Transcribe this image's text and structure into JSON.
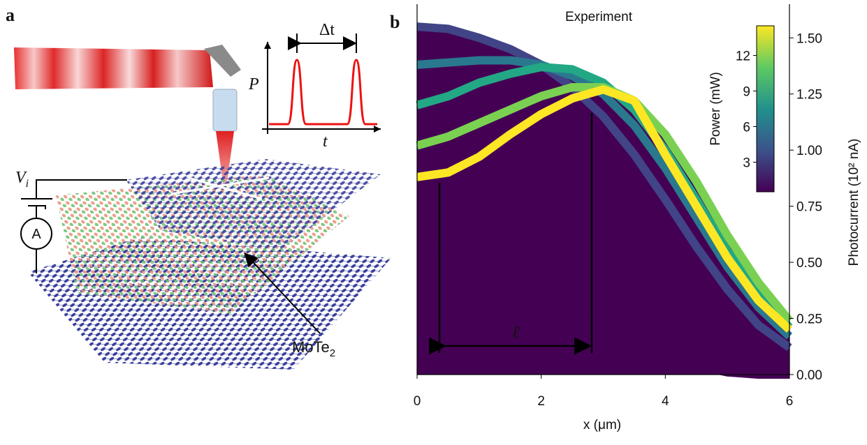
{
  "panel_a": {
    "label": "a",
    "delta_t": "Δt",
    "power_axis": "P",
    "time_axis": "t",
    "voltage": {
      "symbol": "V",
      "subscript": "i"
    },
    "ammeter": "A",
    "material": {
      "formula": "MoTe",
      "subscript": "2"
    }
  },
  "chart_data": {
    "type": "line",
    "panel_label": "b",
    "title": "Experiment",
    "annotation": "ℓ",
    "xlabel": "x (μm)",
    "ylabel": "Photocurrent (10² nA)",
    "x": [
      0,
      0.5,
      1,
      1.5,
      2,
      2.5,
      3,
      3.5,
      4,
      4.5,
      5,
      5.5,
      6
    ],
    "xlim": [
      0,
      6
    ],
    "xticks": [
      0,
      2,
      4,
      6
    ],
    "ylim": [
      0,
      1.65
    ],
    "yticks": [
      {
        "value": 0,
        "label": "0.00"
      },
      {
        "value": 0.25,
        "label": "0.25"
      },
      {
        "value": 0.5,
        "label": "0.50"
      },
      {
        "value": 0.75,
        "label": "0.75"
      },
      {
        "value": 1,
        "label": "1.00"
      },
      {
        "value": 1.25,
        "label": "1.25"
      },
      {
        "value": 1.5,
        "label": "1.50"
      }
    ],
    "series": [
      {
        "color": "#440154",
        "values": [
          0.56,
          0.55,
          0.52,
          0.46,
          0.39,
          0.31,
          0.23,
          0.15,
          0.09,
          0.04,
          0.01,
          0,
          0
        ]
      },
      {
        "color": "#414487",
        "values": [
          1.55,
          1.54,
          1.5,
          1.45,
          1.38,
          1.28,
          1.15,
          0.98,
          0.78,
          0.57,
          0.38,
          0.22,
          0.12
        ]
      },
      {
        "color": "#2a788e",
        "values": [
          1.38,
          1.39,
          1.4,
          1.4,
          1.38,
          1.33,
          1.25,
          1.11,
          0.92,
          0.7,
          0.48,
          0.3,
          0.17
        ]
      },
      {
        "color": "#22a884",
        "values": [
          1.2,
          1.24,
          1.3,
          1.34,
          1.37,
          1.36,
          1.3,
          1.18,
          1.0,
          0.78,
          0.55,
          0.36,
          0.21
        ]
      },
      {
        "color": "#7ad151",
        "values": [
          1.02,
          1.06,
          1.12,
          1.18,
          1.24,
          1.28,
          1.28,
          1.22,
          1.07,
          0.86,
          0.62,
          0.41,
          0.24
        ]
      },
      {
        "color": "#fde725",
        "values": [
          0.88,
          0.9,
          0.97,
          1.07,
          1.16,
          1.23,
          1.27,
          1.22,
          0.98,
          0.75,
          0.52,
          0.33,
          0.2
        ]
      }
    ],
    "colorbar": {
      "label": "Power (mW)",
      "lim": [
        0.5,
        14.5
      ],
      "ticks": [
        3,
        6,
        9,
        12
      ]
    }
  }
}
